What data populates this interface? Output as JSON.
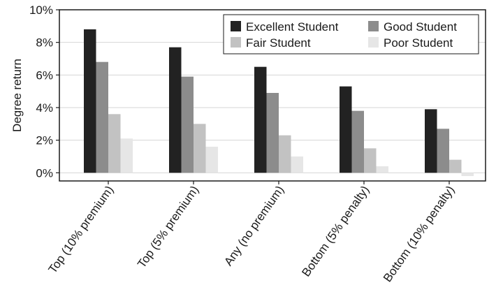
{
  "chart_data": {
    "type": "bar",
    "title": "",
    "xlabel": "",
    "ylabel": "Degree return",
    "ylim": [
      -0.5,
      10
    ],
    "yticks": [
      0,
      2,
      4,
      6,
      8,
      10
    ],
    "ytick_labels": [
      "0%",
      "2%",
      "4%",
      "6%",
      "8%",
      "10%"
    ],
    "grid": "horizontal",
    "legend_position": "top-right",
    "categories": [
      "Top (10% premium)",
      "Top (5% premium)",
      "Any (no premium)",
      "Bottom (5% penalty)",
      "Bottom (10% penalty)"
    ],
    "series": [
      {
        "name": "Excellent Student",
        "color": "#222222",
        "values": [
          8.8,
          7.7,
          6.5,
          5.3,
          3.9
        ]
      },
      {
        "name": "Good Student",
        "color": "#8c8c8c",
        "values": [
          6.8,
          5.9,
          4.9,
          3.8,
          2.7
        ]
      },
      {
        "name": "Fair Student",
        "color": "#c2c2c2",
        "values": [
          3.6,
          3.0,
          2.3,
          1.5,
          0.8
        ]
      },
      {
        "name": "Poor Student",
        "color": "#e6e6e6",
        "values": [
          2.1,
          1.6,
          1.0,
          0.4,
          -0.2
        ]
      }
    ],
    "legend_order": [
      "Excellent Student",
      "Good Student",
      "Fair Student",
      "Poor Student"
    ]
  }
}
